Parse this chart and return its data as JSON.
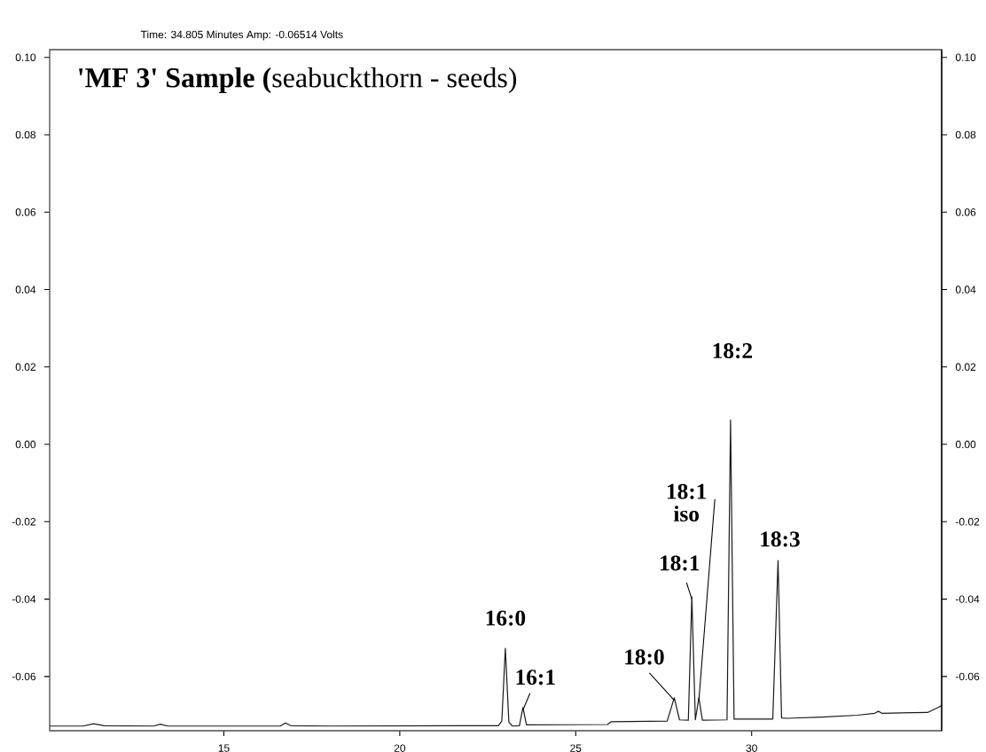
{
  "chart_data": {
    "type": "line",
    "title": "**'MF 3' Sample (**seabuckthorn - seeds)",
    "annotations": [
      "Time:  34.805 Minutes   Amp:  -0.06514 Volts",
      {
        "text": "16:0",
        "x": 23.0,
        "y": -0.0527
      },
      {
        "text": "16:1",
        "x": 23.5,
        "y": -0.068
      },
      {
        "text": "18:0",
        "x": 27.8,
        "y": -0.0655
      },
      {
        "text": "18:1",
        "x": 28.3,
        "y": -0.0394
      },
      {
        "text": "18:1 iso",
        "x": 28.5,
        "y": -0.0655
      },
      {
        "text": "18:2",
        "x": 29.4,
        "y": 0.0063
      },
      {
        "text": "18:3",
        "x": 30.75,
        "y": -0.03
      }
    ],
    "series": [
      {
        "color": "#1a1a1a",
        "x": [
          10.05,
          11.0,
          11.3,
          11.6,
          13.0,
          13.2,
          13.4,
          16.6,
          16.75,
          16.9,
          18.0,
          22.8,
          22.9,
          23.0,
          23.1,
          23.2,
          23.4,
          23.5,
          23.6,
          25.9,
          26.0,
          27.6,
          27.8,
          27.95,
          28.2,
          28.3,
          28.4,
          28.5,
          28.6,
          29.3,
          29.4,
          29.5,
          30.6,
          30.75,
          30.85,
          31.0,
          32.0,
          33.0,
          33.5,
          33.6,
          33.7,
          35.0,
          35.3,
          35.4
        ],
        "values": [
          -0.0728,
          -0.0728,
          -0.0722,
          -0.0727,
          -0.0728,
          -0.0723,
          -0.0728,
          -0.0728,
          -0.072,
          -0.0727,
          -0.0728,
          -0.0727,
          -0.0715,
          -0.0527,
          -0.0718,
          -0.0728,
          -0.0727,
          -0.068,
          -0.0725,
          -0.0724,
          -0.0717,
          -0.0715,
          -0.0655,
          -0.0712,
          -0.0713,
          -0.0394,
          -0.0712,
          -0.0655,
          -0.0713,
          -0.0712,
          0.0063,
          -0.071,
          -0.071,
          -0.03,
          -0.0707,
          -0.0708,
          -0.0705,
          -0.07,
          -0.0695,
          -0.069,
          -0.0695,
          -0.0693,
          -0.068,
          -0.0675
        ]
      }
    ],
    "xlim": [
      10.05,
      35.4
    ],
    "xticks": [
      15,
      20,
      25,
      30
    ],
    "ylim": [
      -0.074,
      0.102
    ],
    "yticks": [
      {
        "value": -0.06,
        "label": "-0.06"
      },
      {
        "value": -0.04,
        "label": "-0.04"
      },
      {
        "value": -0.02,
        "label": "-0.02"
      },
      {
        "value": 0,
        "label": "0.00"
      },
      {
        "value": 0.02,
        "label": "0.02"
      },
      {
        "value": 0.04,
        "label": "0.04"
      },
      {
        "value": 0.06,
        "label": "0.06"
      },
      {
        "value": 0.08,
        "label": "0.08"
      },
      {
        "value": 0.1,
        "label": "0.10"
      }
    ],
    "y2lim": [
      -0.074,
      0.102
    ],
    "y2ticks": [
      {
        "value": -0.06,
        "label": "-0.06"
      },
      {
        "value": -0.04,
        "label": "-0.04"
      },
      {
        "value": -0.02,
        "label": "-0.02"
      },
      {
        "value": 0,
        "label": "0.00"
      },
      {
        "value": 0.02,
        "label": "0.02"
      },
      {
        "value": 0.04,
        "label": "0.04"
      },
      {
        "value": 0.06,
        "label": "0.06"
      },
      {
        "value": 0.08,
        "label": "0.08"
      },
      {
        "value": 0.1,
        "label": "0.10"
      }
    ]
  }
}
